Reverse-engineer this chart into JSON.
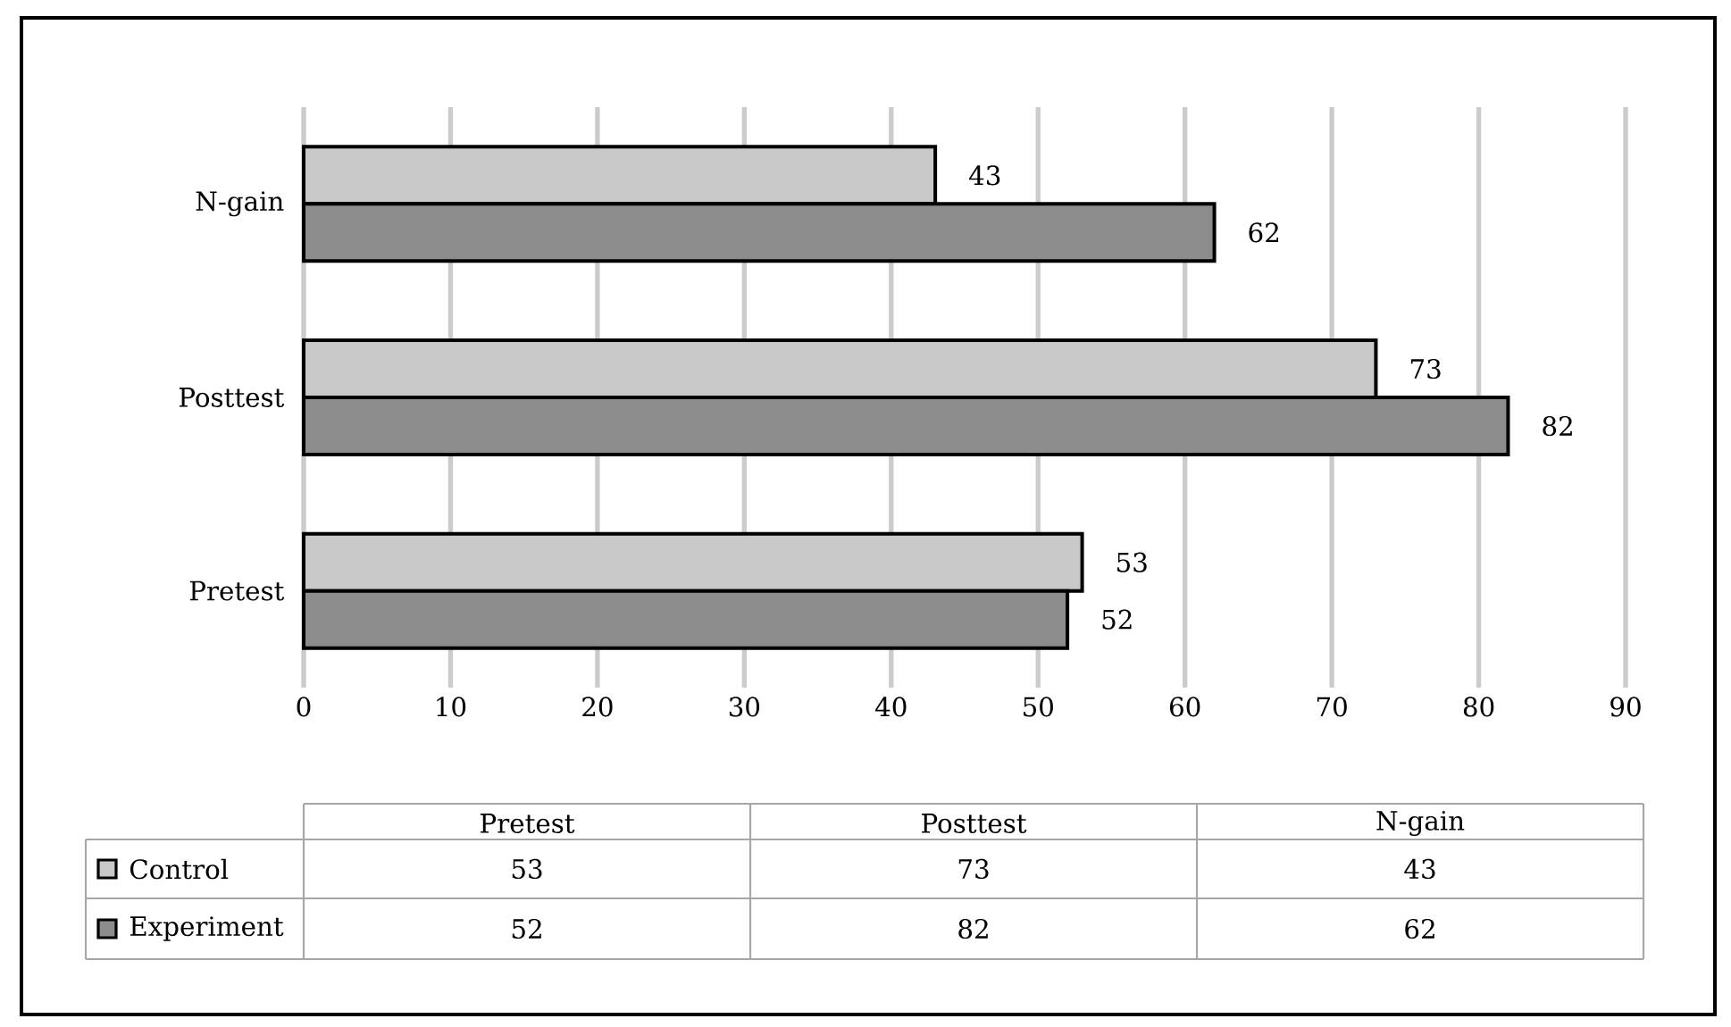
{
  "chart_data": {
    "type": "bar",
    "orientation": "horizontal",
    "categories": [
      "N-gain",
      "Posttest",
      "Pretest"
    ],
    "series": [
      {
        "name": "Control",
        "color": "#c8c8c8",
        "values": [
          43,
          73,
          53
        ],
        "value_labels": [
          "43",
          "73",
          "53"
        ]
      },
      {
        "name": "Experiment",
        "color": "#8c8c8c",
        "values": [
          62,
          82,
          52
        ],
        "value_labels": [
          "62",
          "82",
          "52"
        ]
      }
    ],
    "xlim": [
      0,
      90
    ],
    "xticks": [
      0,
      10,
      20,
      30,
      40,
      50,
      60,
      70,
      80,
      90
    ],
    "grid": "x",
    "legend": "bottom"
  }
}
